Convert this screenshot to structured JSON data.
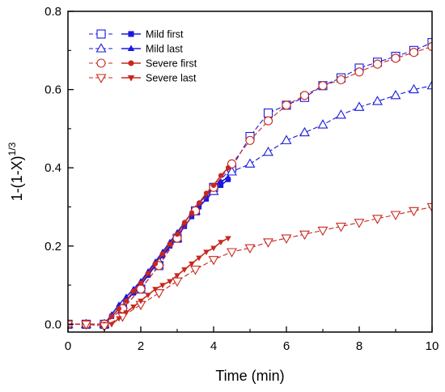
{
  "chart_data": {
    "type": "line",
    "xlabel": "Time (min)",
    "ylabel_main": "1-(1-X)",
    "ylabel_sup": "1/3",
    "xlim": [
      0,
      10
    ],
    "ylim": [
      -0.02,
      0.8
    ],
    "xticks": [
      0,
      2,
      4,
      6,
      8,
      10
    ],
    "yticks": [
      0.0,
      0.2,
      0.4,
      0.6,
      0.8
    ],
    "xtick_labels": [
      "0",
      "2",
      "4",
      "6",
      "8",
      "10"
    ],
    "ytick_labels": [
      "0.0",
      "0.2",
      "0.4",
      "0.6",
      "0.8"
    ],
    "grid": false,
    "legend_position": "top-left",
    "series": [
      {
        "name": "Mild first",
        "color": "#1a1adc",
        "marker": "square",
        "hollow_line": {
          "x": [
            0,
            0.5,
            1,
            1.5,
            2,
            2.5,
            3,
            3.5,
            4,
            4.5,
            5,
            5.5,
            6,
            6.5,
            7,
            7.5,
            8,
            8.5,
            9,
            9.5,
            10
          ],
          "y": [
            0.0,
            0.0,
            0.0,
            0.04,
            0.09,
            0.15,
            0.22,
            0.29,
            0.35,
            0.4,
            0.48,
            0.54,
            0.56,
            0.58,
            0.61,
            0.63,
            0.655,
            0.67,
            0.685,
            0.7,
            0.72
          ]
        },
        "filled_line": {
          "x": [
            1.0,
            1.2,
            1.4,
            1.6,
            1.8,
            2.0,
            2.2,
            2.4,
            2.6,
            2.8,
            3.0,
            3.2,
            3.4,
            3.6,
            3.8,
            4.0,
            4.2,
            4.4
          ],
          "y": [
            0.0,
            0.02,
            0.04,
            0.06,
            0.08,
            0.1,
            0.125,
            0.15,
            0.175,
            0.2,
            0.225,
            0.25,
            0.275,
            0.3,
            0.32,
            0.34,
            0.355,
            0.37
          ]
        }
      },
      {
        "name": "Mild last",
        "color": "#1a1adc",
        "marker": "triangle-up",
        "hollow_line": {
          "x": [
            0,
            0.5,
            1,
            1.5,
            2,
            2.5,
            3,
            3.5,
            4,
            4.5,
            5,
            5.5,
            6,
            6.5,
            7,
            7.5,
            8,
            8.5,
            9,
            9.5,
            10
          ],
          "y": [
            0.0,
            0.0,
            0.0,
            0.05,
            0.1,
            0.16,
            0.22,
            0.29,
            0.34,
            0.39,
            0.41,
            0.44,
            0.47,
            0.49,
            0.51,
            0.535,
            0.555,
            0.57,
            0.585,
            0.6,
            0.61
          ]
        },
        "filled_line": {
          "x": [
            1.0,
            1.2,
            1.4,
            1.6,
            1.8,
            2.0,
            2.2,
            2.4,
            2.6,
            2.8,
            3.0,
            3.2,
            3.4,
            3.6,
            3.8,
            4.0,
            4.2,
            4.4
          ],
          "y": [
            0.0,
            0.025,
            0.05,
            0.07,
            0.09,
            0.11,
            0.135,
            0.16,
            0.185,
            0.21,
            0.235,
            0.26,
            0.285,
            0.31,
            0.33,
            0.35,
            0.365,
            0.375
          ]
        }
      },
      {
        "name": "Severe first",
        "color": "#c8281e",
        "marker": "circle",
        "hollow_line": {
          "x": [
            0,
            0.5,
            1,
            1.5,
            2,
            2.5,
            3,
            3.5,
            4,
            4.5,
            5,
            5.5,
            6,
            6.5,
            7,
            7.5,
            8,
            8.5,
            9,
            9.5,
            10
          ],
          "y": [
            0.0,
            0.0,
            0.0,
            0.04,
            0.09,
            0.15,
            0.22,
            0.29,
            0.35,
            0.41,
            0.47,
            0.52,
            0.56,
            0.585,
            0.61,
            0.625,
            0.645,
            0.665,
            0.68,
            0.695,
            0.71
          ]
        },
        "filled_line": {
          "x": [
            1.0,
            1.2,
            1.4,
            1.6,
            1.8,
            2.0,
            2.2,
            2.4,
            2.6,
            2.8,
            3.0,
            3.2,
            3.4,
            3.6,
            3.8,
            4.0,
            4.2,
            4.4
          ],
          "y": [
            0.0,
            0.02,
            0.04,
            0.06,
            0.085,
            0.105,
            0.13,
            0.155,
            0.18,
            0.205,
            0.23,
            0.26,
            0.285,
            0.31,
            0.335,
            0.355,
            0.38,
            0.4
          ]
        }
      },
      {
        "name": "Severe last",
        "color": "#c8281e",
        "marker": "triangle-down",
        "hollow_line": {
          "x": [
            0,
            0.5,
            1,
            1.5,
            2,
            2.5,
            3,
            3.5,
            4,
            4.5,
            5,
            5.5,
            6,
            6.5,
            7,
            7.5,
            8,
            8.5,
            9,
            9.5,
            10
          ],
          "y": [
            0.0,
            0.0,
            -0.005,
            0.02,
            0.05,
            0.08,
            0.11,
            0.14,
            0.165,
            0.185,
            0.195,
            0.21,
            0.22,
            0.23,
            0.24,
            0.25,
            0.26,
            0.27,
            0.28,
            0.29,
            0.3
          ]
        },
        "filled_line": {
          "x": [
            1.2,
            1.4,
            1.6,
            1.8,
            2.0,
            2.2,
            2.4,
            2.6,
            2.8,
            3.0,
            3.2,
            3.4,
            3.6,
            3.8,
            4.0,
            4.2,
            4.4
          ],
          "y": [
            0.0,
            0.015,
            0.03,
            0.045,
            0.06,
            0.075,
            0.09,
            0.1,
            0.11,
            0.125,
            0.14,
            0.155,
            0.17,
            0.185,
            0.195,
            0.21,
            0.22
          ]
        }
      }
    ]
  }
}
